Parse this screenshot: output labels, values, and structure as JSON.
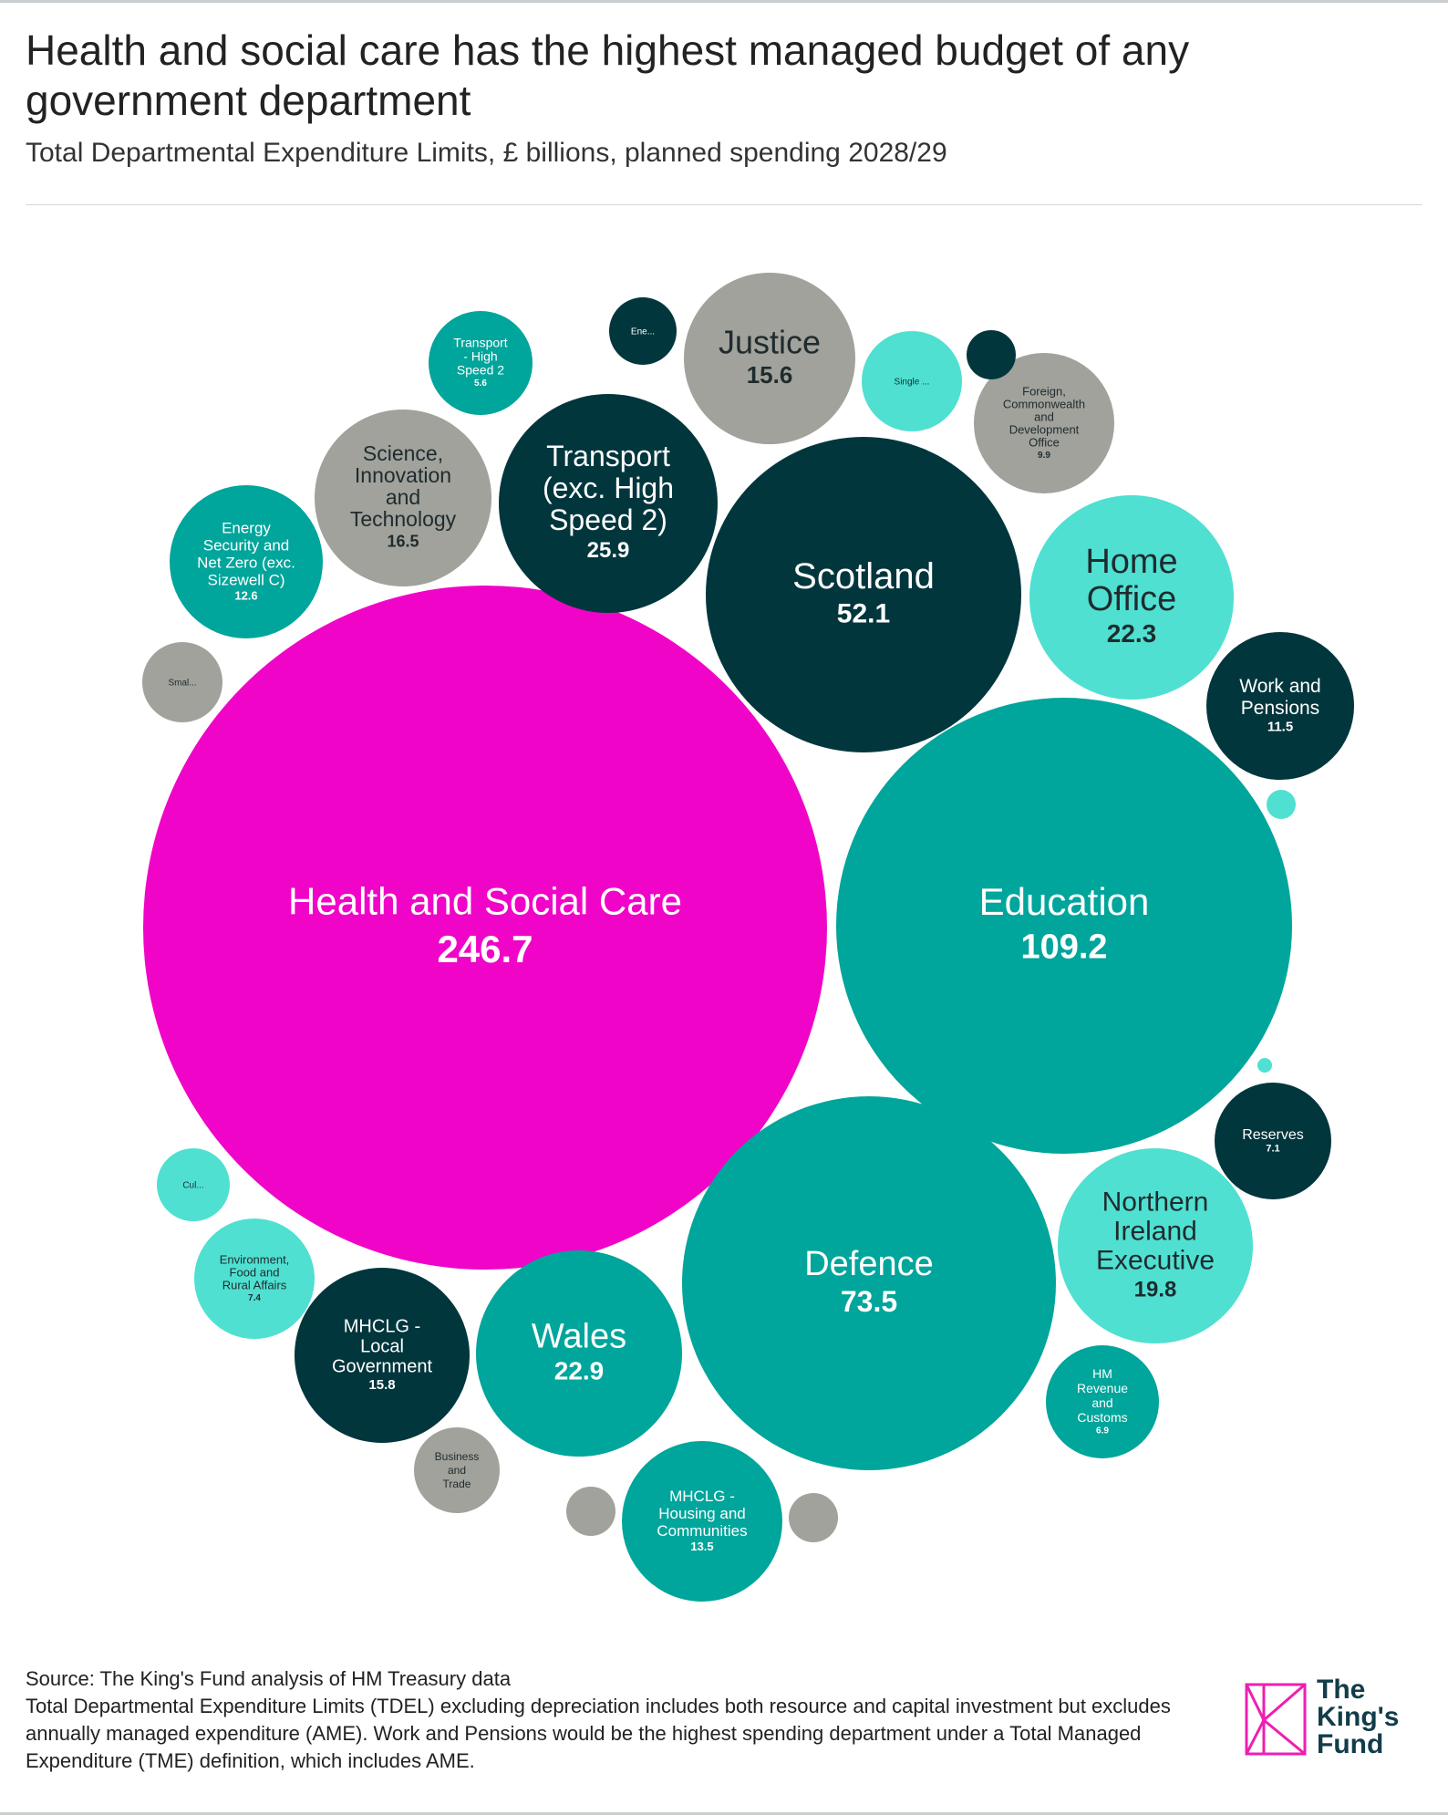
{
  "header": {
    "title": "Health and social care has the highest managed budget of any government department",
    "subtitle": "Total Departmental Expenditure Limits, £ billions, planned spending 2028/29"
  },
  "footer": {
    "source": "Source: The King's Fund analysis of HM Treasury data",
    "note": "Total Departmental Expenditure Limits (TDEL) excluding depreciation includes both resource and capital investment but excludes annually managed expenditure (AME). Work and Pensions would be the highest spending department under a Total Managed Expenditure (TME) definition, which includes AME."
  },
  "logo": {
    "line1": "The",
    "line2": "King's",
    "line3": "Fund",
    "color": "#ee1fb1"
  },
  "chart_data": {
    "type": "bubble",
    "title": "Health and social care has the highest managed budget of any government department",
    "subtitle": "Total Departmental Expenditure Limits, £ billions, planned spending 2028/29",
    "unit": "£ billions",
    "colors": {
      "highlight": "#f005c8",
      "teal": "#00a59b",
      "dark": "#02363d",
      "light": "#4fe0d1",
      "grey": "#a0a29b"
    },
    "bubbles": [
      {
        "label": "Health and Social Care",
        "value": 246.7,
        "color": "highlight"
      },
      {
        "label": "Education",
        "value": 109.2,
        "color": "teal"
      },
      {
        "label": "Defence",
        "value": 73.5,
        "color": "teal"
      },
      {
        "label": "Scotland",
        "value": 52.1,
        "color": "dark"
      },
      {
        "label": "Transport (exc. High Speed 2)",
        "value": 25.9,
        "color": "dark"
      },
      {
        "label": "Wales",
        "value": 22.9,
        "color": "teal"
      },
      {
        "label": "Home Office",
        "value": 22.3,
        "color": "light"
      },
      {
        "label": "Northern Ireland Executive",
        "value": 19.8,
        "color": "light"
      },
      {
        "label": "Science, Innovation and Technology",
        "value": 16.5,
        "color": "grey"
      },
      {
        "label": "MHCLG - Local Government",
        "value": 15.8,
        "color": "dark"
      },
      {
        "label": "Justice",
        "value": 15.6,
        "color": "grey"
      },
      {
        "label": "MHCLG - Housing and Communities",
        "value": 13.5,
        "color": "teal"
      },
      {
        "label": "Energy Security and Net Zero (exc. Sizewell C)",
        "value": 12.6,
        "color": "teal"
      },
      {
        "label": "Work and Pensions",
        "value": 11.5,
        "color": "dark"
      },
      {
        "label": "Foreign, Commonwealth and Development Office",
        "value": 9.9,
        "color": "grey"
      },
      {
        "label": "Environment, Food and Rural Affairs",
        "value": 7.4,
        "color": "light"
      },
      {
        "label": "Reserves",
        "value": 7.1,
        "color": "dark"
      },
      {
        "label": "HM Revenue and Customs",
        "value": 6.9,
        "color": "teal"
      },
      {
        "label": "Transport - High Speed 2",
        "value": 5.6,
        "color": "teal"
      },
      {
        "label": "Single ...",
        "value": null,
        "color": "light"
      },
      {
        "label": "Business and Trade",
        "value": null,
        "color": "grey"
      },
      {
        "label": "Smal...",
        "value": null,
        "color": "grey"
      },
      {
        "label": "Cul...",
        "value": null,
        "color": "light"
      },
      {
        "label": "Ene...",
        "value": null,
        "color": "dark"
      },
      {
        "label": "",
        "value": null,
        "color": "grey"
      },
      {
        "label": "",
        "value": null,
        "color": "grey"
      },
      {
        "label": "",
        "value": null,
        "color": "dark"
      },
      {
        "label": "",
        "value": null,
        "color": "light"
      },
      {
        "label": "",
        "value": null,
        "color": "light"
      }
    ]
  }
}
